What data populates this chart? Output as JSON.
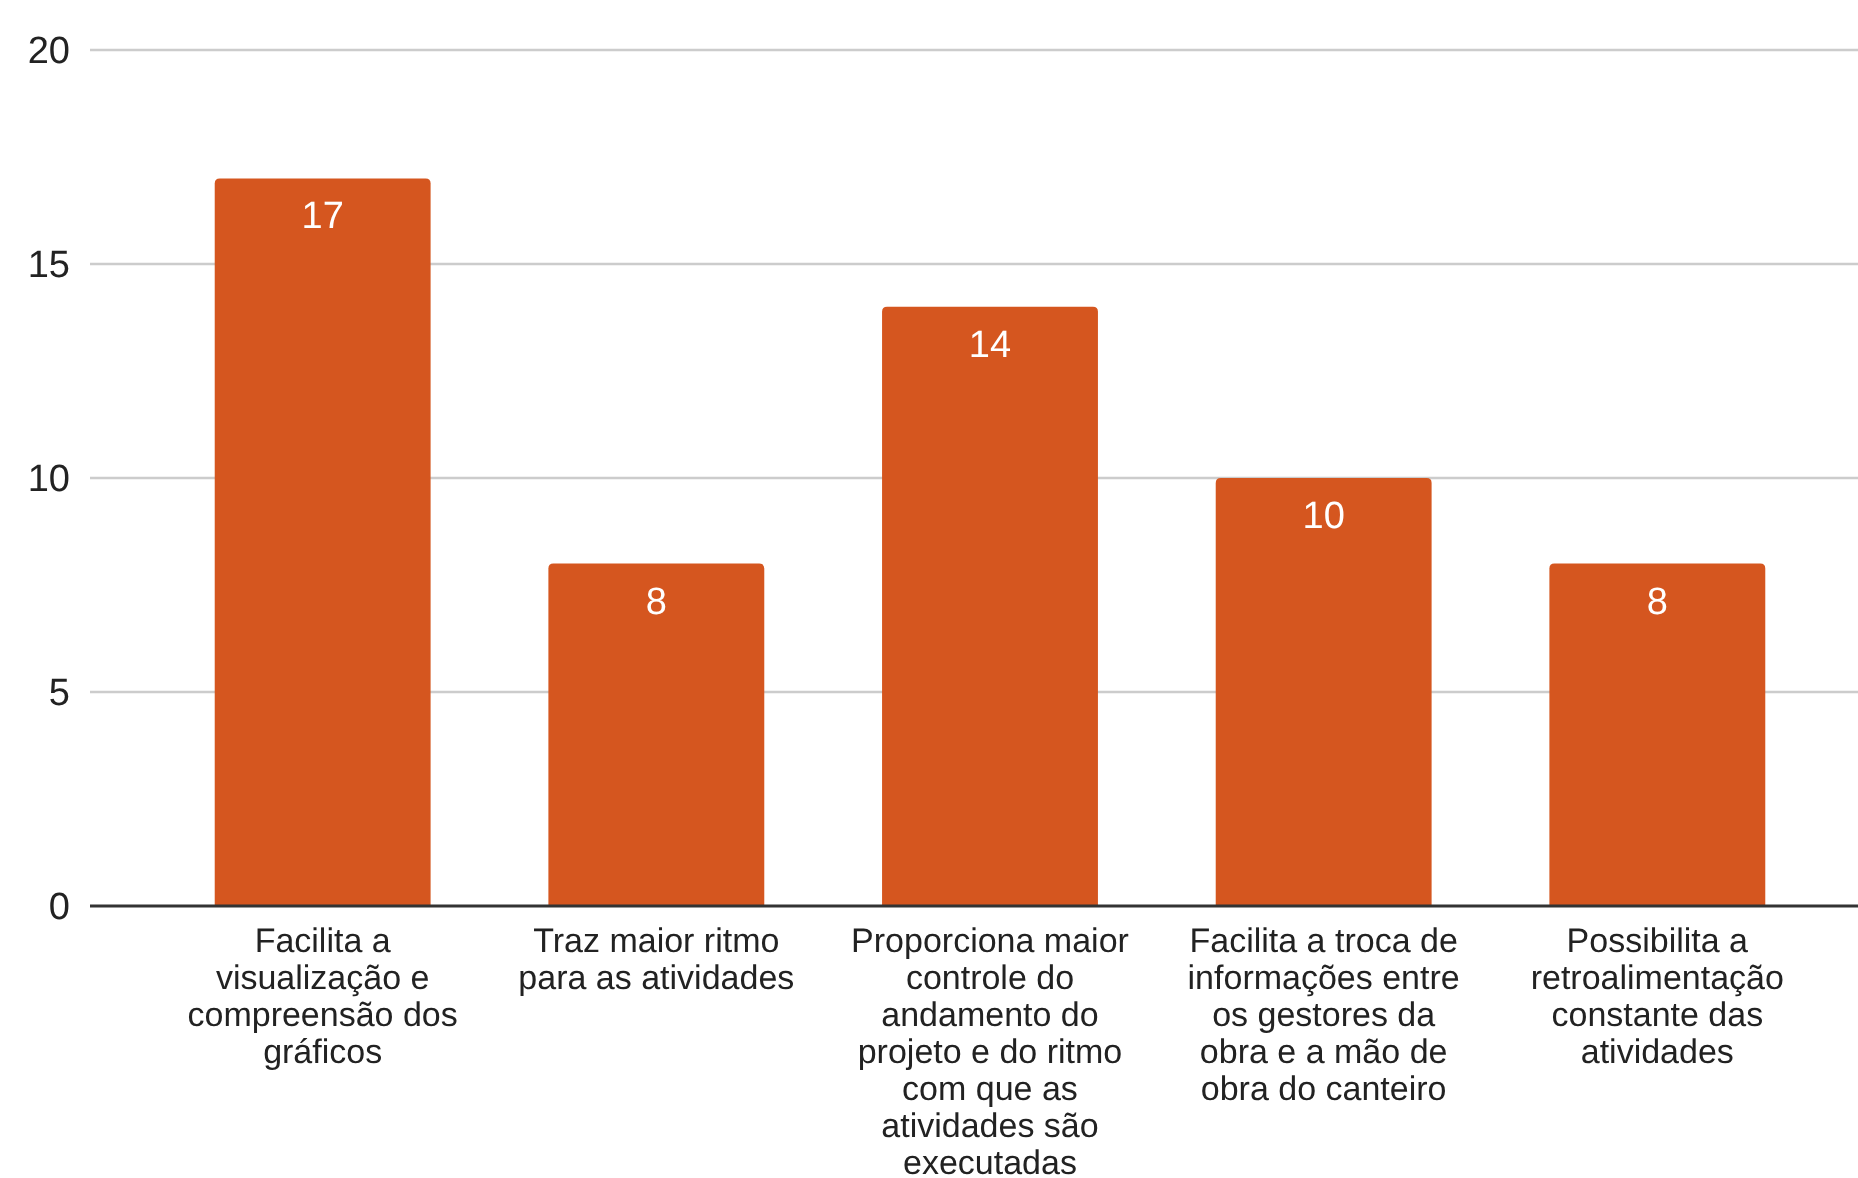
{
  "chart_data": {
    "type": "bar",
    "categories": [
      "Facilita a visualização e compreensão dos gráficos",
      "Traz maior ritmo para as atividades",
      "Proporciona maior controle do andamento do projeto e do ritmo com que as atividades são executadas",
      "Facilita a troca de informações entre os gestores da obra e a mão de obra do canteiro",
      "Possibilita a retroalimentação constante das atividades"
    ],
    "values": [
      17,
      8,
      14,
      10,
      8
    ],
    "color": "#d5561f",
    "ylim": [
      0,
      20
    ],
    "yticks": [
      0,
      5,
      10,
      15,
      20
    ],
    "grid": "y",
    "data_labels": true
  }
}
